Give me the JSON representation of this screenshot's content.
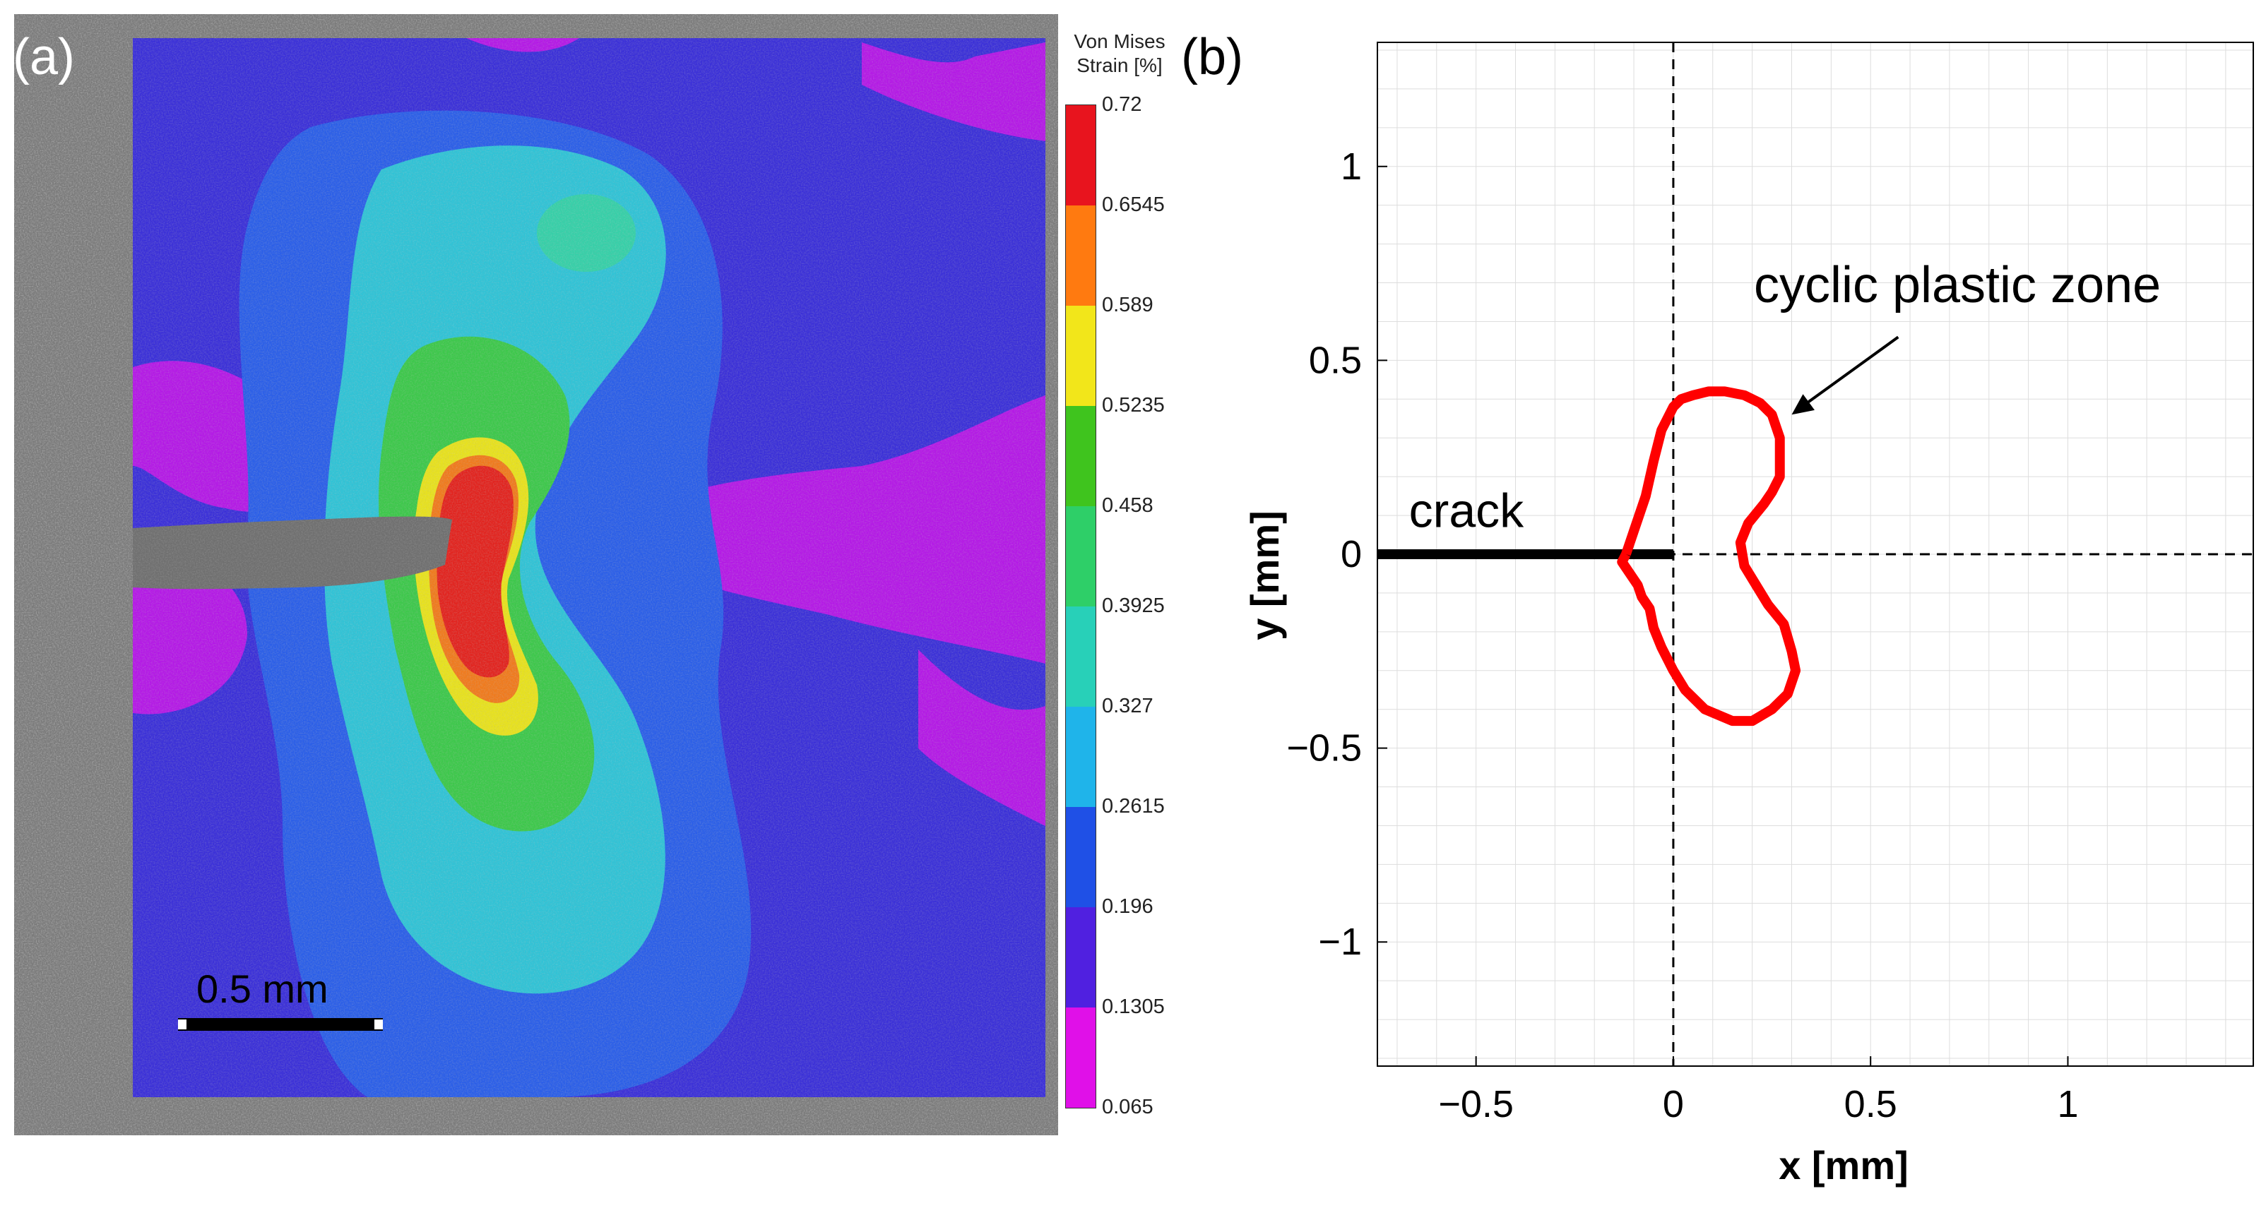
{
  "panel_a": {
    "label": "(a)",
    "scale_bar_label": "0.5 mm",
    "colorbar": {
      "title_line1": "Von Mises",
      "title_line2": "Strain [%]",
      "ticks": [
        "0.72",
        "0.6545",
        "0.589",
        "0.5235",
        "0.458",
        "0.3925",
        "0.327",
        "0.2615",
        "0.196",
        "0.1305",
        "0.065"
      ],
      "colors": [
        "#e8141e",
        "#ff7a10",
        "#f2e61a",
        "#3fc41e",
        "#2ecf68",
        "#28d0b8",
        "#1fb4ea",
        "#1f50e6",
        "#5020e0",
        "#e010e8"
      ]
    }
  },
  "chart_data": {
    "type": "line",
    "label": "(b)",
    "title": "",
    "xlabel": "x [mm]",
    "ylabel": "y [mm]",
    "xlim": [
      -0.75,
      1.47
    ],
    "ylim": [
      -1.32,
      1.32
    ],
    "x_ticks": [
      -0.5,
      0,
      0.5,
      1
    ],
    "y_ticks": [
      1,
      0.5,
      0,
      -0.5,
      -1
    ],
    "x_tick_labels": [
      "−0.5",
      "0",
      "0.5",
      "1"
    ],
    "y_tick_labels": [
      "1",
      "0.5",
      "0",
      "−0.5",
      "−1"
    ],
    "grid": true,
    "colors": {
      "zone": "#ff0000",
      "crack": "#000000",
      "axes": "#000000",
      "grid": "#dddddd"
    },
    "series": [
      {
        "name": "crack",
        "x": [
          -0.75,
          0
        ],
        "y": [
          0,
          0
        ]
      },
      {
        "name": "cyclic plastic zone",
        "x": [
          -0.12,
          -0.1,
          -0.07,
          -0.05,
          -0.03,
          -0.01,
          0.0,
          0.02,
          0.05,
          0.09,
          0.13,
          0.18,
          0.22,
          0.25,
          0.27,
          0.27,
          0.25,
          0.23,
          0.19,
          0.17,
          0.18,
          0.21,
          0.24,
          0.28,
          0.3,
          0.31,
          0.29,
          0.25,
          0.2,
          0.15,
          0.08,
          0.03,
          0.0,
          -0.03,
          -0.05,
          -0.06,
          -0.08,
          -0.09,
          -0.11,
          -0.13,
          -0.12
        ],
        "y": [
          0.0,
          0.06,
          0.15,
          0.24,
          0.32,
          0.36,
          0.38,
          0.4,
          0.41,
          0.42,
          0.42,
          0.41,
          0.39,
          0.36,
          0.3,
          0.2,
          0.16,
          0.13,
          0.08,
          0.03,
          -0.03,
          -0.08,
          -0.13,
          -0.18,
          -0.25,
          -0.3,
          -0.36,
          -0.4,
          -0.43,
          -0.43,
          -0.4,
          -0.35,
          -0.3,
          -0.24,
          -0.19,
          -0.14,
          -0.11,
          -0.08,
          -0.05,
          -0.02,
          0.0
        ]
      }
    ],
    "annotations": [
      {
        "text": "crack",
        "x": -0.67,
        "y": 0.07
      },
      {
        "text": "cyclic plastic zone",
        "x": 0.72,
        "y": 0.65,
        "arrow_to": {
          "x": 0.3,
          "y": 0.36
        }
      }
    ]
  }
}
